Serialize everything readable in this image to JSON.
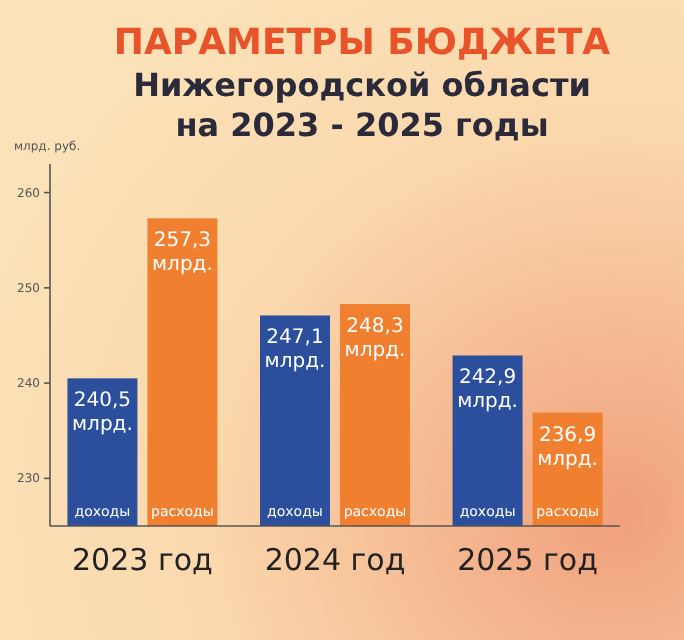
{
  "chart_data": {
    "type": "bar",
    "title": "ПАРАМЕТРЫ БЮДЖЕТА",
    "subtitle": "Нижегородской области на 2023 - 2025 годы",
    "ylabel": "млрд. руб.",
    "categories": [
      "2023 год",
      "2024 год",
      "2025 год"
    ],
    "series": [
      {
        "name": "доходы",
        "color": "#2b4f9c",
        "values": [
          240.5,
          247.1,
          242.9
        ],
        "value_labels": [
          "240,5 млрд.",
          "247,1 млрд.",
          "242,9 млрд."
        ]
      },
      {
        "name": "расходы",
        "color": "#f08030",
        "values": [
          257.3,
          248.3,
          236.9
        ],
        "value_labels": [
          "257,3 млрд.",
          "248,3 млрд.",
          "236,9 млрд."
        ]
      }
    ],
    "ylim": [
      225,
      263
    ],
    "yticks": [
      230,
      240,
      250,
      260
    ],
    "grid": false
  }
}
